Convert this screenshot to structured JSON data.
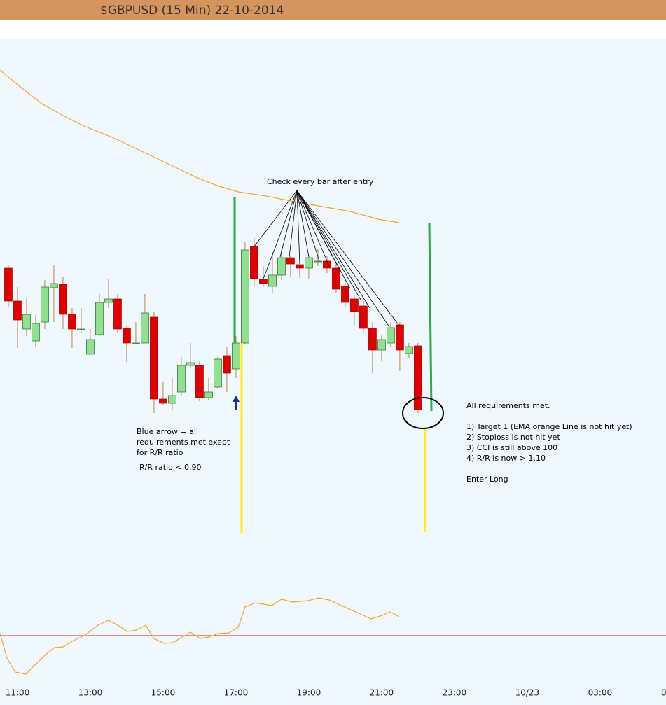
{
  "chart_data": {
    "type": "candlestick",
    "title": "$GBPUSD (15 Min)  22-10-2014",
    "x": [
      10.75,
      11,
      11.25,
      11.5,
      11.75,
      12,
      12.25,
      12.5,
      12.75,
      13,
      13.25,
      13.5,
      13.75,
      14,
      14.25,
      14.5,
      14.75,
      15,
      15.25,
      15.5,
      15.75,
      16,
      16.25,
      16.5,
      16.75,
      17,
      17.25,
      17.5,
      17.75,
      18,
      18.25,
      18.5,
      18.75,
      19,
      19.25,
      19.5,
      19.75,
      20,
      20.25,
      20.5,
      20.75,
      21,
      21.25,
      21.5,
      21.75,
      22
    ],
    "open": [
      385,
      338,
      298,
      281,
      308,
      357,
      362,
      319,
      298,
      262,
      290,
      336,
      341,
      299,
      278,
      278,
      315,
      198,
      192,
      208,
      246,
      246,
      200,
      215,
      260,
      241,
      278,
      416,
      369,
      359,
      375,
      400,
      390,
      385,
      395,
      395,
      385,
      359,
      341,
      331,
      299,
      268,
      278,
      304,
      263,
      274
    ],
    "high": [
      390,
      358,
      343,
      318,
      368,
      390,
      373,
      328,
      328,
      298,
      348,
      370,
      348,
      303,
      308,
      348,
      323,
      223,
      228,
      258,
      278,
      253,
      228,
      258,
      273,
      288,
      423,
      428,
      388,
      408,
      413,
      403,
      398,
      403,
      413,
      403,
      393,
      368,
      348,
      338,
      308,
      290,
      308,
      308,
      278,
      278
    ],
    "low": [
      330,
      271,
      288,
      273,
      298,
      308,
      298,
      271,
      293,
      262,
      288,
      328,
      293,
      251,
      278,
      278,
      178,
      190,
      183,
      203,
      243,
      195,
      196,
      213,
      208,
      228,
      276,
      358,
      358,
      350,
      368,
      373,
      371,
      370,
      388,
      378,
      350,
      330,
      303,
      293,
      235,
      253,
      273,
      238,
      256,
      178
    ],
    "close": [
      338,
      311,
      319,
      306,
      358,
      363,
      319,
      298,
      298,
      283,
      336,
      341,
      298,
      278,
      278,
      321,
      198,
      192,
      203,
      246,
      250,
      200,
      208,
      255,
      235,
      278,
      411,
      370,
      363,
      375,
      400,
      391,
      385,
      400,
      395,
      385,
      355,
      336,
      323,
      299,
      268,
      283,
      300,
      268,
      273,
      183
    ],
    "up_color": "#90e090",
    "down_color": "#e00000",
    "wick_color": "#c87f3c",
    "xlim": [
      10.52,
      28.81
    ],
    "ylim": [
      0,
      713
    ],
    "xticks": [
      {
        "value": 11,
        "label": "11:00"
      },
      {
        "value": 13,
        "label": "13:00"
      },
      {
        "value": 15,
        "label": "15:00"
      },
      {
        "value": 17,
        "label": "17:00"
      },
      {
        "value": 19,
        "label": "19:00"
      },
      {
        "value": 21,
        "label": "21:00"
      },
      {
        "value": 23,
        "label": "23:00"
      },
      {
        "value": 25,
        "label": "10/23"
      },
      {
        "value": 27,
        "label": "03:00"
      },
      {
        "value": 29,
        "label": "0"
      }
    ],
    "ema": {
      "color": "#f5a623",
      "x": [
        10.52,
        11.1,
        11.67,
        12.25,
        12.83,
        13.6,
        14.37,
        15.14,
        15.9,
        16.48,
        17.06,
        17.83,
        18.6,
        19.37,
        20.14,
        20.9,
        21.48
      ],
      "values": [
        668,
        643,
        620,
        603,
        588,
        572,
        553,
        534,
        515,
        503,
        494,
        488,
        480,
        473,
        466,
        455,
        450
      ]
    },
    "indicator": {
      "color": "#f5a623",
      "level": 67,
      "level_color": "#cc2222",
      "ylim": [
        0,
        205
      ],
      "x": [
        10.52,
        10.71,
        10.94,
        11.23,
        11.48,
        11.77,
        12.02,
        12.25,
        12.54,
        12.83,
        13.21,
        13.5,
        13.75,
        14.02,
        14.27,
        14.52,
        14.75,
        15.02,
        15.27,
        15.52,
        15.75,
        16.02,
        16.25,
        16.52,
        16.81,
        17.06,
        17.25,
        17.54,
        17.98,
        18.25,
        18.56,
        18.98,
        19.27,
        19.56,
        19.94,
        20.33,
        20.71,
        21.02,
        21.23,
        21.48
      ],
      "values": [
        70,
        35,
        15,
        12,
        25,
        40,
        50,
        51,
        60,
        67,
        82,
        89,
        82,
        73,
        75,
        82,
        63,
        56,
        57,
        65,
        72,
        63,
        65,
        70,
        71,
        79,
        108,
        114,
        110,
        119,
        115,
        117,
        121,
        118,
        109,
        100,
        91,
        96,
        101,
        94
      ]
    },
    "annotations": [
      "Check every bar after entry",
      "Blue arrow = all",
      "requirements met exept",
      "for R/R ratio",
      "R/R ratio < 0,90",
      "All requirements met.",
      "1)  Target 1 (EMA orange Line is not hit yet)",
      "2) Stoploss is not hit yet",
      "3) CCI is still above 100",
      "4) R/R is now > 1.10",
      "Enter Long"
    ]
  }
}
